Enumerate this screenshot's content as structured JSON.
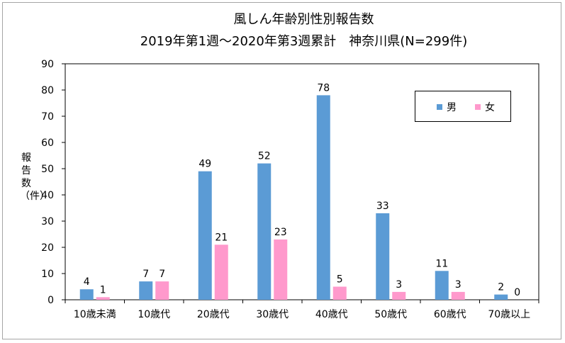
{
  "chart_data": {
    "type": "bar",
    "title": "風しん年齢別性別報告数",
    "subtitle": "2019年第1週～2020年第3週累計　神奈川県(N=299件)",
    "ylabel": "報告数（件）",
    "xlabel": "",
    "categories": [
      "10歳未満",
      "10歳代",
      "20歳代",
      "30歳代",
      "40歳代",
      "50歳代",
      "60歳代",
      "70歳以上"
    ],
    "series": [
      {
        "name": "男",
        "color": "#5b9bd5",
        "values": [
          4,
          7,
          49,
          52,
          78,
          33,
          11,
          2
        ]
      },
      {
        "name": "女",
        "color": "#ff99cc",
        "values": [
          1,
          7,
          21,
          23,
          5,
          3,
          3,
          0
        ]
      }
    ],
    "ylim": [
      0,
      90
    ],
    "yticks": [
      "0",
      "10",
      "20",
      "30",
      "40",
      "50",
      "60",
      "70",
      "80",
      "90"
    ],
    "grid": false,
    "legend_position": "top-right",
    "data_labels": true
  }
}
